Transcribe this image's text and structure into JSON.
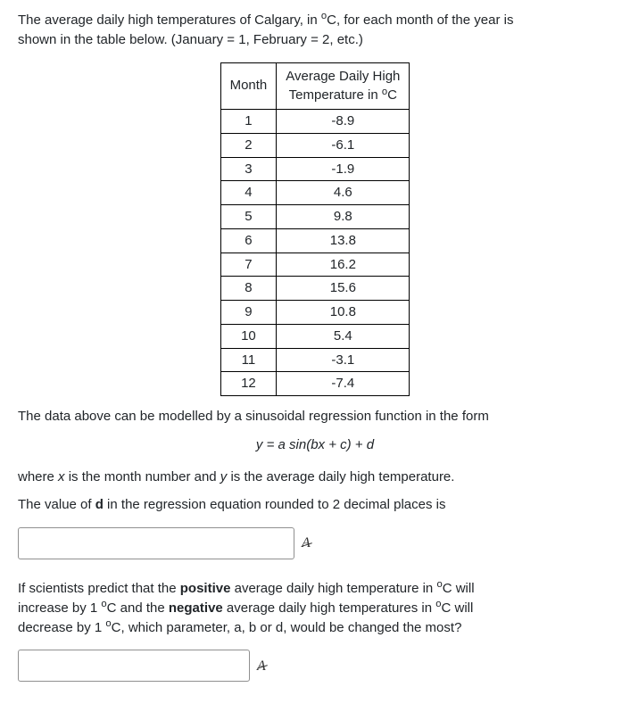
{
  "intro_line1": "The average daily high temperatures of Calgary, in ",
  "degC": "C",
  "intro_line1b": ", for each month of the year is",
  "intro_line2": "shown in the table below.  (January = 1, February = 2, etc.)",
  "table": {
    "col1_header": "Month",
    "col2_header_line1": "Average Daily High",
    "col2_header_line2": "Temperature in ",
    "rows": [
      {
        "m": "1",
        "t": "-8.9"
      },
      {
        "m": "2",
        "t": "-6.1"
      },
      {
        "m": "3",
        "t": "-1.9"
      },
      {
        "m": "4",
        "t": "4.6"
      },
      {
        "m": "5",
        "t": "9.8"
      },
      {
        "m": "6",
        "t": "13.8"
      },
      {
        "m": "7",
        "t": "16.2"
      },
      {
        "m": "8",
        "t": "15.6"
      },
      {
        "m": "9",
        "t": "10.8"
      },
      {
        "m": "10",
        "t": "5.4"
      },
      {
        "m": "11",
        "t": "-3.1"
      },
      {
        "m": "12",
        "t": "-7.4"
      }
    ]
  },
  "para_model": "The data above can be modelled by a sinusoidal regression function in the form",
  "equation": "y = a sin(bx + c) + d",
  "para_where_a": "where ",
  "para_where_x": "x",
  "para_where_b": " is the month number and ",
  "para_where_y": "y",
  "para_where_c": " is the average daily high temperature.",
  "para_q1_a": "The value of ",
  "para_q1_d": "d",
  "para_q1_b": " in the regression equation rounded to 2 decimal places is",
  "q2_a": "If scientists predict that the ",
  "q2_pos": "positive",
  "q2_b": " average daily high temperature in ",
  "q2_c": " will",
  "q2_d": "increase by 1 ",
  "q2_e": " and the ",
  "q2_neg": "negative",
  "q2_f": " average daily high temperatures in ",
  "q2_g": " will",
  "q2_h": "decrease by 1 ",
  "q2_i": ", which parameter, a, b or d, would be changed the most?",
  "format_glyph": "A",
  "inputs": {
    "a1": "",
    "a2": ""
  }
}
